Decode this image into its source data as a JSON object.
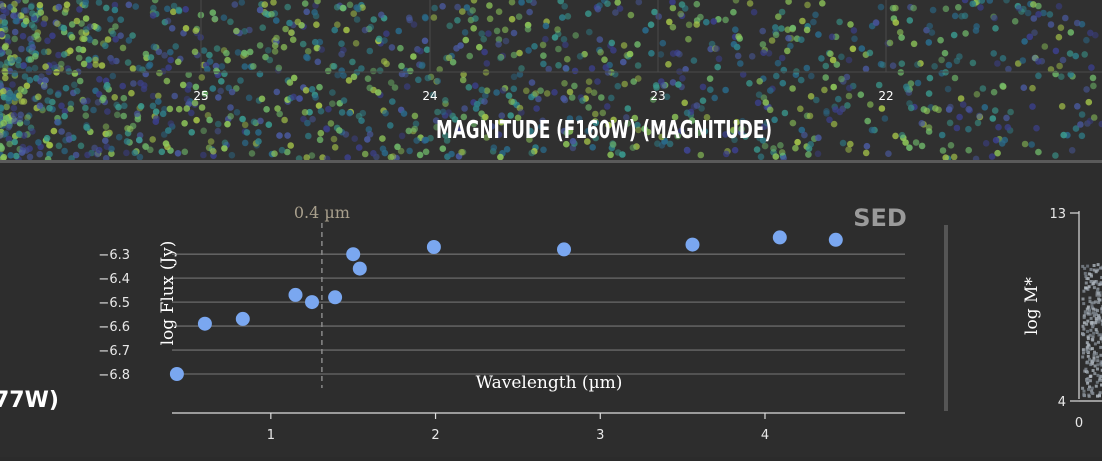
{
  "top_panel": {
    "xlabel": "MAGNITUDE (F160W) (MAGNITUDE)",
    "x_ticks": [
      "25",
      "24",
      "23",
      "22"
    ]
  },
  "left_panel": {
    "cut_label": "77W)"
  },
  "chart_data": [
    {
      "type": "scatter",
      "title": "SED",
      "xlabel": "Wavelength (µm)",
      "ylabel": "log Flux (Jy)",
      "xlim": [
        0.4,
        4.85
      ],
      "ylim": [
        -6.85,
        -6.22
      ],
      "x_ticks": [
        1,
        2,
        3,
        4
      ],
      "y_ticks": [
        -6.3,
        -6.4,
        -6.5,
        -6.6,
        -6.7,
        -6.8
      ],
      "grid": true,
      "point_color": "#7aa7f0",
      "reference_line": {
        "x": 1.31,
        "label": "0.4 µm"
      },
      "series": [
        {
          "x": [
            0.43,
            0.6,
            0.83,
            1.15,
            1.25,
            1.39,
            1.5,
            1.54,
            1.99,
            2.78,
            3.56,
            4.09,
            4.43
          ],
          "y": [
            -6.8,
            -6.59,
            -6.57,
            -6.47,
            -6.5,
            -6.48,
            -6.3,
            -6.36,
            -6.27,
            -6.28,
            -6.26,
            -6.23,
            -6.24
          ]
        }
      ]
    },
    {
      "type": "scatter",
      "ylabel": "log M*",
      "y_ticks": [
        "13",
        "4"
      ],
      "x_ticks": [
        "0"
      ]
    }
  ]
}
